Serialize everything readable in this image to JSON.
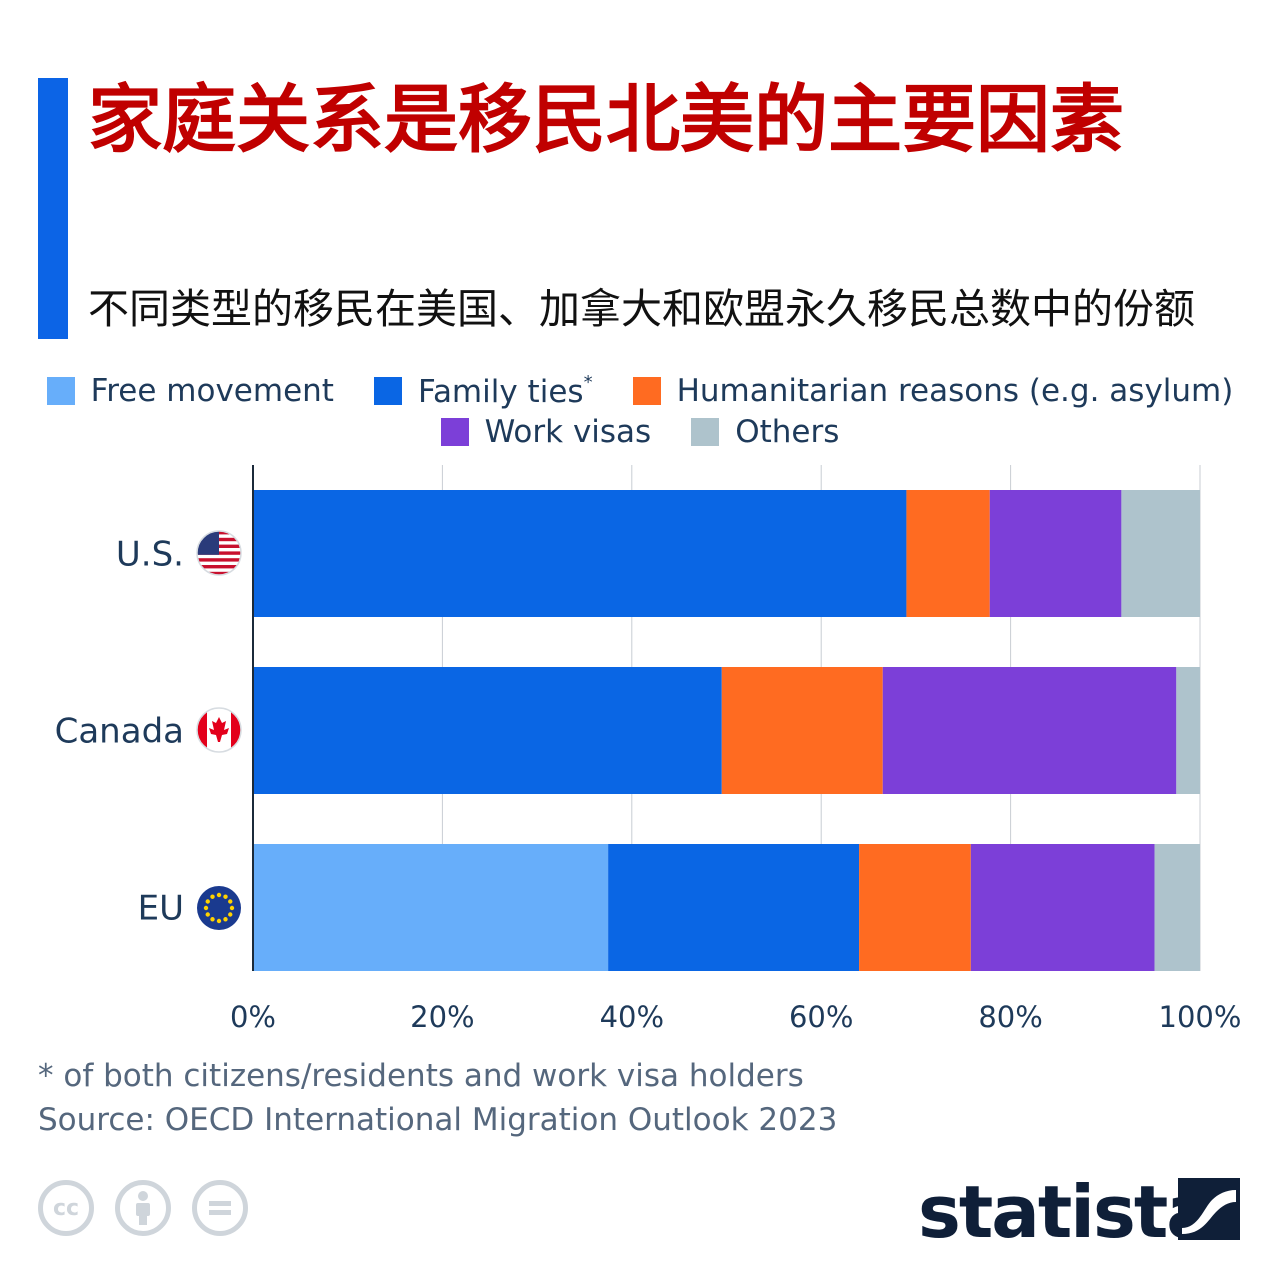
{
  "header": {
    "title": "家庭关系是移民北美的主要因素",
    "subtitle": "不同类型的移民在美国、加拿大和欧盟永久移民总数中的份额"
  },
  "colors": {
    "accent": "#0c64e6",
    "title": "#c00000",
    "free_movement": "#67aefa",
    "family_ties": "#0a66e4",
    "humanitarian": "#ff6b21",
    "work_visas": "#7c3fd8",
    "others": "#aec3cc",
    "axis_text": "#1e3a5a",
    "gridline": "#c8cdd3"
  },
  "legend": {
    "free_movement": "Free movement",
    "family_ties": "Family ties",
    "family_ties_marker": "*",
    "humanitarian": "Humanitarian reasons (e.g. asylum)",
    "work_visas": "Work visas",
    "others": "Others"
  },
  "chart_data": {
    "type": "bar",
    "orientation": "horizontal",
    "stacked": true,
    "categories": [
      "U.S.",
      "Canada",
      "EU"
    ],
    "category_icons": [
      "us-flag-icon",
      "canada-flag-icon",
      "eu-flag-icon"
    ],
    "series": [
      {
        "name": "Free movement",
        "values": [
          0,
          0,
          37.5
        ],
        "color": "#67aefa"
      },
      {
        "name": "Family ties*",
        "values": [
          69,
          49.5,
          26.5
        ],
        "color": "#0a66e4"
      },
      {
        "name": "Humanitarian reasons (e.g. asylum)",
        "values": [
          8.8,
          17.0,
          11.8
        ],
        "color": "#ff6b21"
      },
      {
        "name": "Work visas",
        "values": [
          13.9,
          31.0,
          19.4
        ],
        "color": "#7c3fd8"
      },
      {
        "name": "Others",
        "values": [
          8.3,
          2.5,
          4.8
        ],
        "color": "#aec3cc"
      }
    ],
    "x_ticks": [
      "0%",
      "20%",
      "40%",
      "60%",
      "80%",
      "100%"
    ],
    "xlim": [
      0,
      100
    ],
    "grid": true,
    "legend_position": "top"
  },
  "footer": {
    "footnote": "* of both citizens/residents and work visa holders",
    "source": "Source: OECD International Migration Outlook 2023",
    "brand": "statista",
    "license_icons": [
      "cc-icon",
      "attribution-icon",
      "no-derivatives-icon"
    ]
  }
}
